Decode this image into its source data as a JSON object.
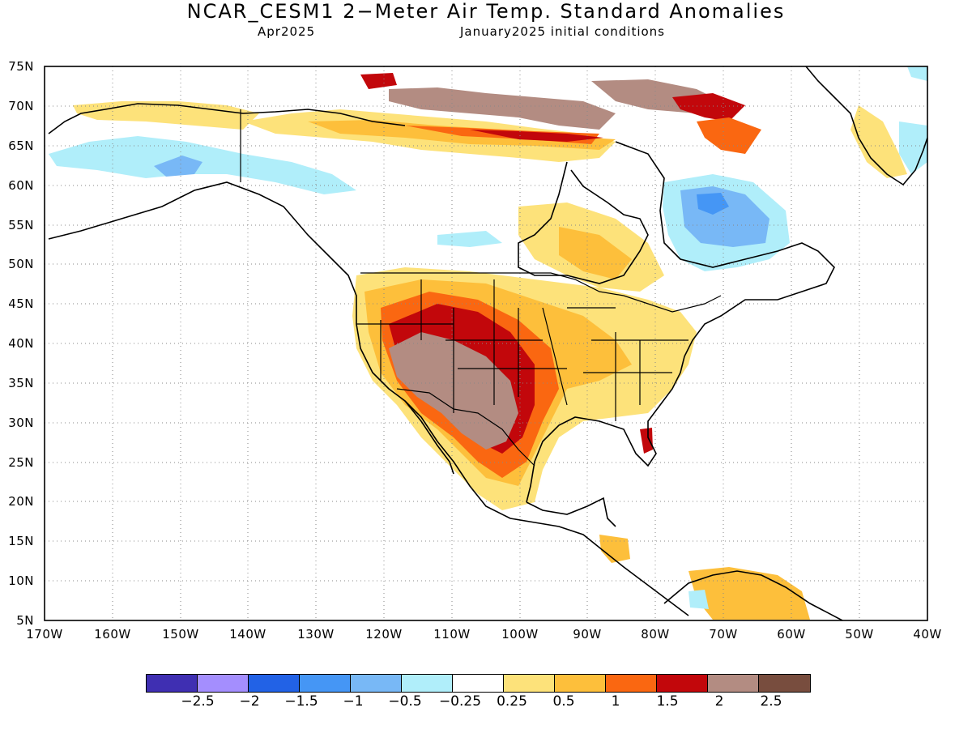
{
  "title": "NCAR_CESM1 2−Meter Air Temp. Standard Anomalies",
  "valid_month": "Apr2025",
  "init_text": "January2025 initial conditions",
  "lat_labels": [
    "75N",
    "70N",
    "65N",
    "60N",
    "55N",
    "50N",
    "45N",
    "40N",
    "35N",
    "30N",
    "25N",
    "20N",
    "15N",
    "10N",
    "5N"
  ],
  "lon_labels": [
    "170W",
    "160W",
    "150W",
    "140W",
    "130W",
    "120W",
    "110W",
    "100W",
    "90W",
    "80W",
    "70W",
    "60W",
    "50W",
    "40W"
  ],
  "colorbar": {
    "colors": [
      "#3f2fb2",
      "#a48efe",
      "#2262e6",
      "#4596f5",
      "#78b8f6",
      "#b0eefa",
      "#ffffff",
      "#fde27a",
      "#fdbf3b",
      "#fa6711",
      "#c2070b",
      "#b38c82",
      "#784d3e"
    ],
    "labels": [
      "−2.5",
      "−2",
      "−1.5",
      "−1",
      "−0.5",
      "−0.25",
      "0.25",
      "0.5",
      "1",
      "1.5",
      "2",
      "2.5"
    ]
  }
}
